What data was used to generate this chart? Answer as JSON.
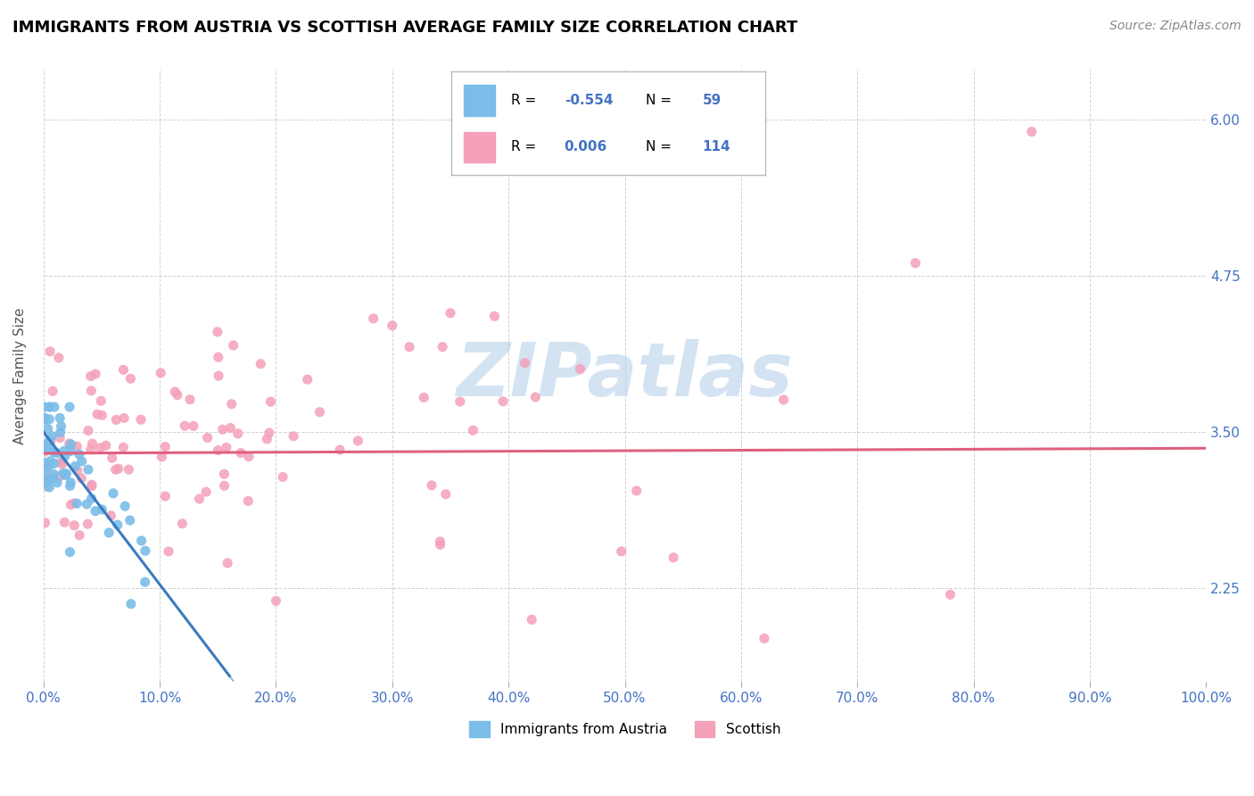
{
  "title": "IMMIGRANTS FROM AUSTRIA VS SCOTTISH AVERAGE FAMILY SIZE CORRELATION CHART",
  "source": "Source: ZipAtlas.com",
  "ylabel": "Average Family Size",
  "x_min": 0.0,
  "x_max": 100.0,
  "y_min": 1.5,
  "y_max": 6.4,
  "y_ticks": [
    2.25,
    3.5,
    4.75,
    6.0
  ],
  "x_ticks": [
    0.0,
    10.0,
    20.0,
    30.0,
    40.0,
    50.0,
    60.0,
    70.0,
    80.0,
    90.0,
    100.0
  ],
  "blue_color": "#7bbde8",
  "pink_color": "#f4a0b8",
  "blue_line_color": "#3a7bbf",
  "pink_line_color": "#e06080",
  "watermark": "ZIPatlas",
  "watermark_color": "#b0cce8",
  "legend_label_blue": "Immigrants from Austria",
  "legend_label_pink": "Scottish",
  "background_color": "#ffffff",
  "grid_color": "#cccccc",
  "tick_color": "#4472c4",
  "title_color": "#000000",
  "title_fontsize": 13,
  "source_fontsize": 10,
  "blue_R": "-0.554",
  "blue_N": "59",
  "pink_R": "0.006",
  "pink_N": "114",
  "blue_trend_x0": 0.0,
  "blue_trend_y0": 3.5,
  "blue_trend_x1": 16.0,
  "blue_trend_y1": 1.55,
  "blue_trend_ext_x1": 22.0,
  "pink_trend_x0": 0.0,
  "pink_trend_y0": 3.33,
  "pink_trend_x1": 100.0,
  "pink_trend_y1": 3.37
}
